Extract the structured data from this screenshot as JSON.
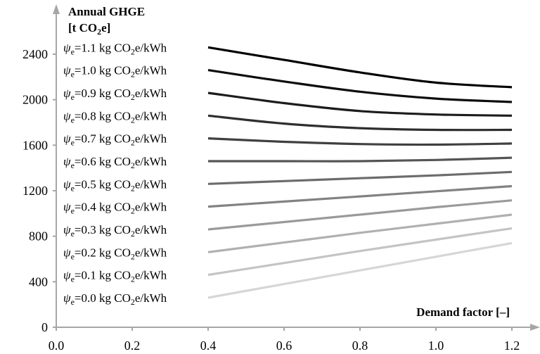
{
  "chart_data": {
    "type": "line",
    "ylabel_line1": "Annual GHGE",
    "ylabel_line2_prefix": "[t CO",
    "ylabel_line2_sub": "2",
    "ylabel_line2_suffix": "e]",
    "xlabel": "Demand factor [–]",
    "xlim": [
      0.0,
      1.2
    ],
    "ylim": [
      0,
      2400
    ],
    "x_ticks": [
      "0.0",
      "0.2",
      "0.4",
      "0.6",
      "0.8",
      "1.0",
      "1.2"
    ],
    "y_ticks": [
      "0",
      "400",
      "800",
      "1200",
      "1600",
      "2000",
      "2400"
    ],
    "grid": false,
    "label_parts": {
      "symbol": "ψ",
      "subscript": "e",
      "eq": "=",
      "unit_a": "kg CO",
      "unit_sub": "2",
      "unit_b": "e/kWh"
    },
    "x": [
      0.4,
      0.6,
      0.8,
      1.0,
      1.2
    ],
    "series": [
      {
        "name": "1.1",
        "color": "#000000",
        "values": [
          2460,
          2350,
          2240,
          2150,
          2110
        ]
      },
      {
        "name": "1.0",
        "color": "#0d0d0d",
        "values": [
          2260,
          2160,
          2070,
          2010,
          1980
        ]
      },
      {
        "name": "0.9",
        "color": "#1c1c1c",
        "values": [
          2060,
          1970,
          1900,
          1870,
          1860
        ]
      },
      {
        "name": "0.8",
        "color": "#2e2e2e",
        "values": [
          1860,
          1790,
          1750,
          1735,
          1735
        ]
      },
      {
        "name": "0.7",
        "color": "#404040",
        "values": [
          1660,
          1630,
          1610,
          1605,
          1615
        ]
      },
      {
        "name": "0.6",
        "color": "#555555",
        "values": [
          1460,
          1460,
          1460,
          1470,
          1490
        ]
      },
      {
        "name": "0.5",
        "color": "#6c6c6c",
        "values": [
          1260,
          1285,
          1310,
          1335,
          1365
        ]
      },
      {
        "name": "0.4",
        "color": "#828282",
        "values": [
          1060,
          1105,
          1150,
          1195,
          1240
        ]
      },
      {
        "name": "0.3",
        "color": "#9a9a9a",
        "values": [
          860,
          925,
          990,
          1055,
          1115
        ]
      },
      {
        "name": "0.2",
        "color": "#b0b0b0",
        "values": [
          660,
          745,
          830,
          910,
          990
        ]
      },
      {
        "name": "0.1",
        "color": "#c4c4c4",
        "values": [
          460,
          565,
          670,
          770,
          870
        ]
      },
      {
        "name": "0.0",
        "color": "#d6d6d6",
        "values": [
          260,
          380,
          500,
          620,
          740
        ]
      }
    ],
    "axis_color": "#a6a6a6"
  }
}
